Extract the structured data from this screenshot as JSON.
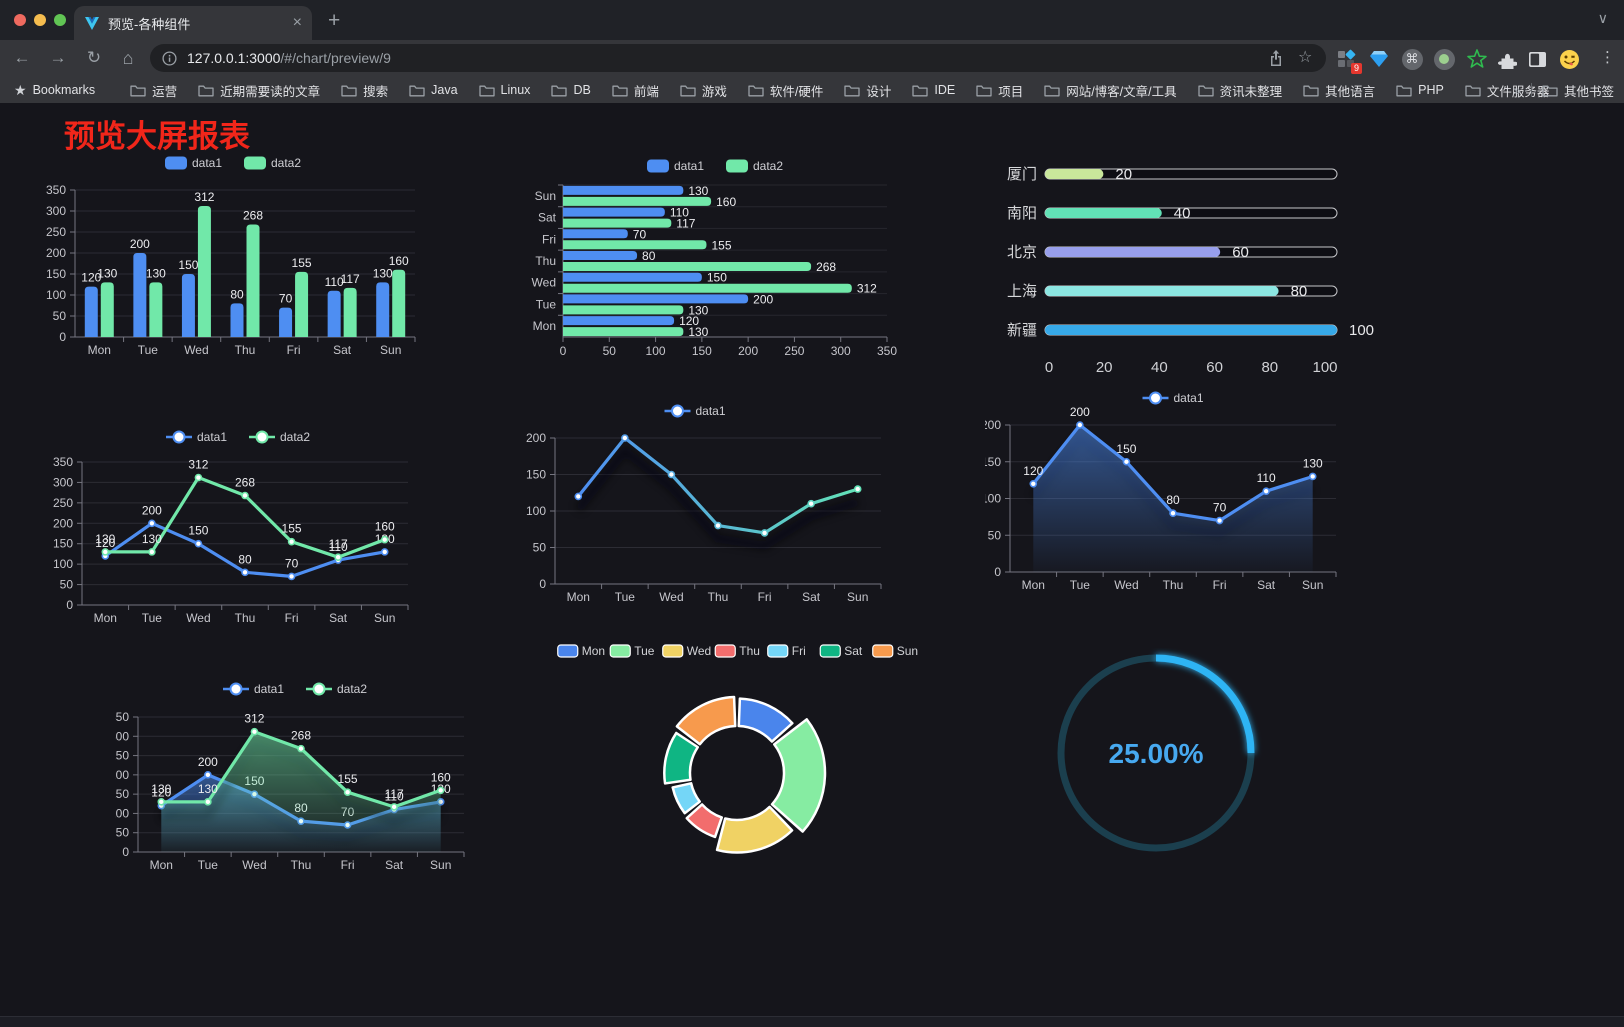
{
  "browser": {
    "tab_title": "预览-各种组件",
    "url_host": "127.0.0.1:3000",
    "url_path": "/#/chart/preview/9",
    "extensions_badge": "9",
    "bookmarks_label": "Bookmarks",
    "bookmark_folders": [
      "运营",
      "近期需要读的文章",
      "搜索",
      "Java",
      "Linux",
      "DB",
      "前端",
      "游戏",
      "软件/硬件",
      "设计",
      "IDE",
      "项目",
      "网站/博客/文章/工具",
      "资讯未整理",
      "其他语言",
      "PHP",
      "文件服务器"
    ],
    "bookmarks_overflow": "»",
    "other_bookmarks": "其他书签"
  },
  "page": {
    "title": "预览大屏报表"
  },
  "colors": {
    "accent_blue": "#4e8ef2",
    "accent_green": "#71e8a9",
    "title_red": "#f1261a",
    "gauge_blue": "#2eb4f4"
  },
  "chart_data": [
    {
      "id": "grouped-bar",
      "type": "bar",
      "categories": [
        "Mon",
        "Tue",
        "Wed",
        "Thu",
        "Fri",
        "Sat",
        "Sun"
      ],
      "series": [
        {
          "name": "data1",
          "color": "#4e8ef2",
          "values": [
            120,
            200,
            150,
            80,
            70,
            110,
            130
          ]
        },
        {
          "name": "data2",
          "color": "#71e8a9",
          "values": [
            130,
            130,
            312,
            268,
            155,
            117,
            160
          ]
        }
      ],
      "ylim": [
        0,
        350
      ],
      "ytick_step": 50,
      "grid": true,
      "legend_position": "top",
      "value_labels": true
    },
    {
      "id": "grouped-horizontal-bar",
      "type": "bar-horizontal",
      "categories": [
        "Mon",
        "Tue",
        "Wed",
        "Thu",
        "Fri",
        "Sat",
        "Sun"
      ],
      "display_order_top_to_bottom": [
        "Sun",
        "Sat",
        "Fri",
        "Thu",
        "Wed",
        "Tue",
        "Mon"
      ],
      "series": [
        {
          "name": "data1",
          "color": "#4e8ef2",
          "values": [
            120,
            200,
            150,
            80,
            70,
            110,
            130
          ]
        },
        {
          "name": "data2",
          "color": "#71e8a9",
          "values": [
            130,
            130,
            312,
            268,
            155,
            117,
            160
          ]
        }
      ],
      "xlim": [
        0,
        350
      ],
      "xtick_step": 50,
      "legend_position": "top",
      "value_labels": true
    },
    {
      "id": "city-progress-bars",
      "type": "bar",
      "items": [
        {
          "label": "厦门",
          "value": 20,
          "color": "#c9e79b"
        },
        {
          "label": "南阳",
          "value": 40,
          "color": "#62e1b6"
        },
        {
          "label": "北京",
          "value": 60,
          "color": "#989fec"
        },
        {
          "label": "上海",
          "value": 80,
          "color": "#8ce6e2"
        },
        {
          "label": "新疆",
          "value": 100,
          "color": "#37a9e8"
        }
      ],
      "xlim": [
        0,
        100
      ],
      "xticks": [
        0,
        20,
        40,
        60,
        80,
        100
      ]
    },
    {
      "id": "dual-line",
      "type": "line",
      "categories": [
        "Mon",
        "Tue",
        "Wed",
        "Thu",
        "Fri",
        "Sat",
        "Sun"
      ],
      "series": [
        {
          "name": "data1",
          "color": "#4e8ef2",
          "values": [
            120,
            200,
            150,
            80,
            70,
            110,
            130
          ]
        },
        {
          "name": "data2",
          "color": "#71e8a9",
          "values": [
            130,
            130,
            312,
            268,
            155,
            117,
            160
          ]
        }
      ],
      "ylim": [
        0,
        350
      ],
      "ytick_step": 50,
      "legend_position": "top",
      "value_labels": true
    },
    {
      "id": "gradient-line",
      "type": "line",
      "categories": [
        "Mon",
        "Tue",
        "Wed",
        "Thu",
        "Fri",
        "Sat",
        "Sun"
      ],
      "series": [
        {
          "name": "data1",
          "colors": [
            "#4e8ef2",
            "#63e2b7"
          ],
          "values": [
            120,
            200,
            150,
            80,
            70,
            110,
            130
          ]
        }
      ],
      "ylim": [
        0,
        200
      ],
      "ytick_step": 50,
      "legend_position": "top",
      "value_labels": false,
      "shadow": true
    },
    {
      "id": "area-line",
      "type": "area",
      "categories": [
        "Mon",
        "Tue",
        "Wed",
        "Thu",
        "Fri",
        "Sat",
        "Sun"
      ],
      "series": [
        {
          "name": "data1",
          "color": "#4e8ef2",
          "values": [
            120,
            200,
            150,
            80,
            70,
            110,
            130
          ]
        }
      ],
      "ylim": [
        0,
        200
      ],
      "ytick_step": 50,
      "legend_position": "top",
      "value_labels": true
    },
    {
      "id": "dual-area-line",
      "type": "area",
      "categories": [
        "Mon",
        "Tue",
        "Wed",
        "Thu",
        "Fri",
        "Sat",
        "Sun"
      ],
      "series": [
        {
          "name": "data1",
          "color": "#4e8ef2",
          "values": [
            120,
            200,
            150,
            80,
            70,
            110,
            130
          ]
        },
        {
          "name": "data2",
          "color": "#71e8a9",
          "values": [
            130,
            130,
            312,
            268,
            155,
            117,
            160
          ]
        }
      ],
      "ylim": [
        0,
        350
      ],
      "ytick_step": 50,
      "legend_position": "top",
      "value_labels": true
    },
    {
      "id": "rose-doughnut",
      "type": "pie",
      "style": "doughnut-rose",
      "categories": [
        "Mon",
        "Tue",
        "Wed",
        "Thu",
        "Fri",
        "Sat",
        "Sun"
      ],
      "values": [
        120,
        200,
        150,
        80,
        70,
        110,
        130
      ],
      "colors": [
        "#4a85ec",
        "#86eca2",
        "#f0d264",
        "#f26d6d",
        "#74d6f7",
        "#0fb583",
        "#f79a4d"
      ],
      "legend_position": "top"
    },
    {
      "id": "progress-gauge",
      "type": "gauge",
      "value": 25,
      "value_label": "25.00%",
      "color": "#2eb4f4",
      "track_color": "#1b3f4e"
    }
  ]
}
